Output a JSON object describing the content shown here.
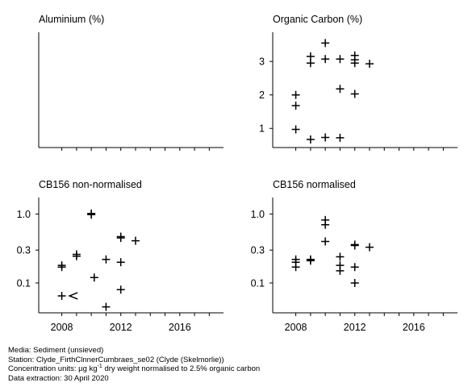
{
  "chart_data": [
    {
      "type": "scatter",
      "title": "Aluminium (%)",
      "scale": "linear",
      "ylim": [
        0.5,
        3.8
      ],
      "yticks": [],
      "xlim": [
        2006.6,
        2018.8
      ],
      "xticks": [
        2008,
        2009,
        2010,
        2011,
        2012,
        2013,
        2014,
        2015,
        2016,
        2017,
        2018
      ],
      "xtick_labels": [],
      "points": []
    },
    {
      "type": "scatter",
      "title": "Organic Carbon (%)",
      "scale": "linear",
      "ylim": [
        0.5,
        3.8
      ],
      "yticks": [
        1,
        2,
        3
      ],
      "ytick_labels": [
        "1",
        "2",
        "3"
      ],
      "xlim": [
        2006.6,
        2018.8
      ],
      "xticks": [
        2008,
        2009,
        2010,
        2011,
        2012,
        2013,
        2014,
        2015,
        2016,
        2017,
        2018
      ],
      "xtick_labels": [],
      "points": [
        {
          "x": 2008.0,
          "y": 2.0,
          "marker": "+"
        },
        {
          "x": 2008.0,
          "y": 1.68,
          "marker": "+"
        },
        {
          "x": 2008.0,
          "y": 0.97,
          "marker": "+"
        },
        {
          "x": 2009.0,
          "y": 3.15,
          "marker": "+"
        },
        {
          "x": 2009.0,
          "y": 2.95,
          "marker": "+"
        },
        {
          "x": 2009.0,
          "y": 0.67,
          "marker": "+"
        },
        {
          "x": 2010.0,
          "y": 3.55,
          "marker": "+"
        },
        {
          "x": 2010.0,
          "y": 3.07,
          "marker": "+"
        },
        {
          "x": 2010.0,
          "y": 0.73,
          "marker": "+"
        },
        {
          "x": 2011.0,
          "y": 3.07,
          "marker": "+"
        },
        {
          "x": 2011.0,
          "y": 2.18,
          "marker": "+"
        },
        {
          "x": 2011.0,
          "y": 0.72,
          "marker": "+"
        },
        {
          "x": 2012.0,
          "y": 3.18,
          "marker": "+"
        },
        {
          "x": 2012.0,
          "y": 3.05,
          "marker": "+"
        },
        {
          "x": 2012.0,
          "y": 2.95,
          "marker": "+"
        },
        {
          "x": 2012.0,
          "y": 2.03,
          "marker": "+"
        },
        {
          "x": 2013.0,
          "y": 2.93,
          "marker": "+"
        }
      ]
    },
    {
      "type": "scatter",
      "title": "CB156 non-normalised",
      "scale": "log",
      "ylim": [
        0.04,
        1.6
      ],
      "yticks": [
        0.1,
        0.3,
        1.0
      ],
      "ytick_labels": [
        "0.1",
        "0.3",
        "1.0"
      ],
      "xlim": [
        2006.6,
        2018.8
      ],
      "xticks": [
        2008,
        2009,
        2010,
        2011,
        2012,
        2013,
        2014,
        2015,
        2016,
        2017,
        2018
      ],
      "xtick_labels": [
        "2008",
        "",
        "",
        "",
        "2012",
        "",
        "",
        "",
        "2016",
        "",
        ""
      ],
      "points": [
        {
          "x": 2008.0,
          "y": 0.18,
          "marker": "+"
        },
        {
          "x": 2008.0,
          "y": 0.17,
          "marker": "+"
        },
        {
          "x": 2008.0,
          "y": 0.065,
          "marker": "+"
        },
        {
          "x": 2008.8,
          "y": 0.065,
          "marker": "<"
        },
        {
          "x": 2009.0,
          "y": 0.26,
          "marker": "+"
        },
        {
          "x": 2009.0,
          "y": 0.245,
          "marker": "+"
        },
        {
          "x": 2010.0,
          "y": 1.02,
          "marker": "+"
        },
        {
          "x": 2010.0,
          "y": 0.98,
          "marker": "+"
        },
        {
          "x": 2010.2,
          "y": 0.12,
          "marker": "+"
        },
        {
          "x": 2011.0,
          "y": 0.22,
          "marker": "+"
        },
        {
          "x": 2011.0,
          "y": 0.045,
          "marker": "+"
        },
        {
          "x": 2012.0,
          "y": 0.47,
          "marker": "+"
        },
        {
          "x": 2012.0,
          "y": 0.45,
          "marker": "+"
        },
        {
          "x": 2012.0,
          "y": 0.2,
          "marker": "+"
        },
        {
          "x": 2012.0,
          "y": 0.08,
          "marker": "+"
        },
        {
          "x": 2013.0,
          "y": 0.41,
          "marker": "+"
        }
      ]
    },
    {
      "type": "scatter",
      "title": "CB156 normalised",
      "scale": "log",
      "ylim": [
        0.04,
        1.6
      ],
      "yticks": [
        0.1,
        0.3,
        1.0
      ],
      "ytick_labels": [
        "0.1",
        "0.3",
        "1.0"
      ],
      "xlim": [
        2006.6,
        2018.8
      ],
      "xticks": [
        2008,
        2009,
        2010,
        2011,
        2012,
        2013,
        2014,
        2015,
        2016,
        2017,
        2018
      ],
      "xtick_labels": [
        "2008",
        "",
        "",
        "",
        "2012",
        "",
        "",
        "",
        "2016",
        "",
        ""
      ],
      "points": [
        {
          "x": 2008.0,
          "y": 0.22,
          "marker": "+"
        },
        {
          "x": 2008.0,
          "y": 0.2,
          "marker": "+"
        },
        {
          "x": 2008.0,
          "y": 0.17,
          "marker": "+"
        },
        {
          "x": 2009.0,
          "y": 0.22,
          "marker": "+"
        },
        {
          "x": 2009.0,
          "y": 0.21,
          "marker": "+"
        },
        {
          "x": 2010.0,
          "y": 0.82,
          "marker": "+"
        },
        {
          "x": 2010.0,
          "y": 0.7,
          "marker": "+"
        },
        {
          "x": 2010.0,
          "y": 0.4,
          "marker": "+"
        },
        {
          "x": 2011.0,
          "y": 0.24,
          "marker": "+"
        },
        {
          "x": 2011.0,
          "y": 0.18,
          "marker": "+"
        },
        {
          "x": 2011.0,
          "y": 0.15,
          "marker": "+"
        },
        {
          "x": 2012.0,
          "y": 0.36,
          "marker": "+"
        },
        {
          "x": 2012.0,
          "y": 0.35,
          "marker": "+"
        },
        {
          "x": 2012.0,
          "y": 0.17,
          "marker": "+"
        },
        {
          "x": 2012.0,
          "y": 0.1,
          "marker": "+"
        },
        {
          "x": 2013.0,
          "y": 0.33,
          "marker": "+"
        }
      ]
    }
  ],
  "footer": {
    "media": "Media: Sediment (unsieved)",
    "station": "Station: Clyde_FirthClnnerCumbraes_se02 (Clyde (Skelmorlie))",
    "units_prefix": "Concentration units:  µg kg",
    "units_sup": "-1",
    "units_suffix": " dry weight normalised to 2.5% organic carbon",
    "extraction": "Data extraction: 30 April 2020"
  }
}
